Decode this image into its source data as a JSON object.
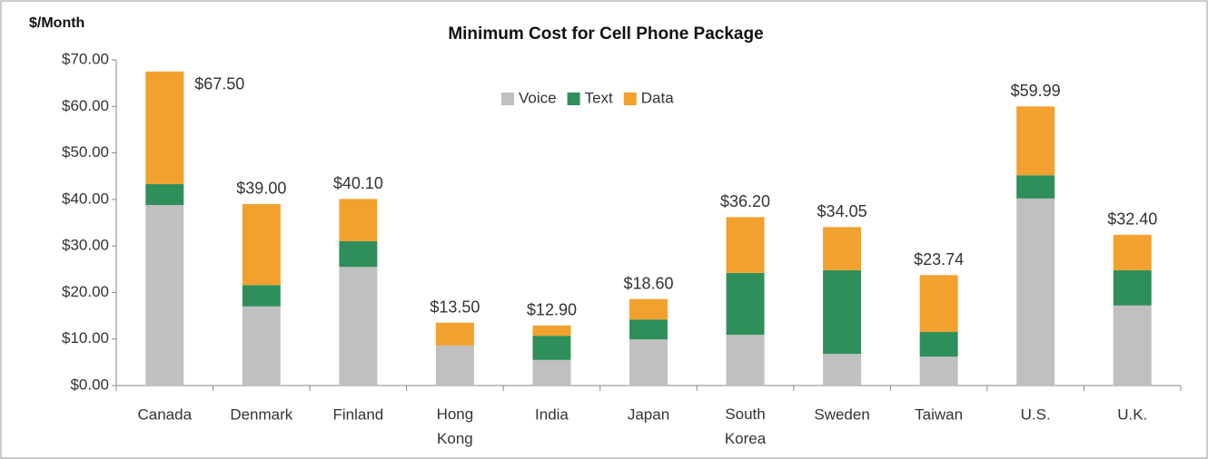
{
  "chart_data": {
    "type": "stacked_bar",
    "title": "Minimum Cost for Cell Phone Package",
    "y_axis_label": "$/Month",
    "categories": [
      "Canada",
      "Denmark",
      "Finland",
      "Hong Kong",
      "India",
      "Japan",
      "South Korea",
      "Sweden",
      "Taiwan",
      "U.S.",
      "U.K."
    ],
    "series": [
      {
        "name": "Voice",
        "color": "#c0c0c0",
        "values": [
          38.8,
          17.0,
          25.5,
          8.6,
          5.5,
          9.9,
          10.9,
          6.8,
          6.2,
          40.2,
          17.2
        ]
      },
      {
        "name": "Text",
        "color": "#2f8f5b",
        "values": [
          4.5,
          4.6,
          5.5,
          0,
          5.2,
          4.3,
          13.3,
          18.0,
          5.3,
          5.0,
          7.6
        ]
      },
      {
        "name": "Data",
        "color": "#f2a12e",
        "values": [
          24.2,
          17.4,
          9.1,
          4.9,
          2.2,
          4.4,
          12.0,
          9.25,
          12.24,
          14.79,
          7.6
        ]
      }
    ],
    "totals": [
      67.5,
      39.0,
      40.1,
      13.5,
      12.9,
      18.6,
      36.2,
      34.05,
      23.74,
      59.99,
      32.4
    ],
    "total_labels": [
      "$67.50",
      "$39.00",
      "$40.10",
      "$13.50",
      "$12.90",
      "$18.60",
      "$36.20",
      "$34.05",
      "$23.74",
      "$59.99",
      "$32.40"
    ],
    "ylim": [
      0,
      70
    ],
    "yticks": [
      {
        "value": 0,
        "label": "$0.00"
      },
      {
        "value": 10,
        "label": "$10.00"
      },
      {
        "value": 20,
        "label": "$20.00"
      },
      {
        "value": 30,
        "label": "$30.00"
      },
      {
        "value": 40,
        "label": "$40.00"
      },
      {
        "value": 50,
        "label": "$50.00"
      },
      {
        "value": 60,
        "label": "$60.00"
      },
      {
        "value": 70,
        "label": "$70.00"
      }
    ],
    "grid": false,
    "legend": "top"
  }
}
